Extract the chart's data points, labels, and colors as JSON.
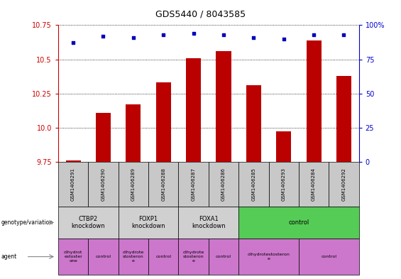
{
  "title": "GDS5440 / 8043585",
  "samples": [
    "GSM1406291",
    "GSM1406290",
    "GSM1406289",
    "GSM1406288",
    "GSM1406287",
    "GSM1406286",
    "GSM1406285",
    "GSM1406293",
    "GSM1406284",
    "GSM1406292"
  ],
  "transformed_count": [
    9.762,
    10.11,
    10.17,
    10.33,
    10.51,
    10.56,
    10.31,
    9.975,
    10.64,
    10.38
  ],
  "percentile_rank": [
    87,
    92,
    91,
    93,
    94,
    93,
    91,
    90,
    93,
    93
  ],
  "ylim_left": [
    9.75,
    10.75
  ],
  "ylim_right": [
    0,
    100
  ],
  "yticks_left": [
    9.75,
    10.0,
    10.25,
    10.5,
    10.75
  ],
  "yticks_right": [
    0,
    25,
    50,
    75,
    100
  ],
  "bar_color": "#bb0000",
  "dot_color": "#0000bb",
  "genotype_groups": [
    {
      "label": "CTBP2\nknockdown",
      "start": 0,
      "end": 2,
      "color": "#d0d0d0"
    },
    {
      "label": "FOXP1\nknockdown",
      "start": 2,
      "end": 4,
      "color": "#d0d0d0"
    },
    {
      "label": "FOXA1\nknockdown",
      "start": 4,
      "end": 6,
      "color": "#d0d0d0"
    },
    {
      "label": "control",
      "start": 6,
      "end": 10,
      "color": "#55cc55"
    }
  ],
  "agent_groups": [
    {
      "label": "dihydrot\nestoster\none",
      "start": 0,
      "end": 1,
      "color": "#cc77cc"
    },
    {
      "label": "control",
      "start": 1,
      "end": 2,
      "color": "#cc77cc"
    },
    {
      "label": "dihydrote\nstosteron\ne",
      "start": 2,
      "end": 3,
      "color": "#cc77cc"
    },
    {
      "label": "control",
      "start": 3,
      "end": 4,
      "color": "#cc77cc"
    },
    {
      "label": "dihydrote\nstosteron\ne",
      "start": 4,
      "end": 5,
      "color": "#cc77cc"
    },
    {
      "label": "control",
      "start": 5,
      "end": 6,
      "color": "#cc77cc"
    },
    {
      "label": "dihydrotestosteron\ne",
      "start": 6,
      "end": 8,
      "color": "#cc77cc"
    },
    {
      "label": "control",
      "start": 8,
      "end": 10,
      "color": "#cc77cc"
    }
  ],
  "left_axis_color": "#cc0000",
  "right_axis_color": "#0000cc",
  "sample_box_color": "#c8c8c8"
}
